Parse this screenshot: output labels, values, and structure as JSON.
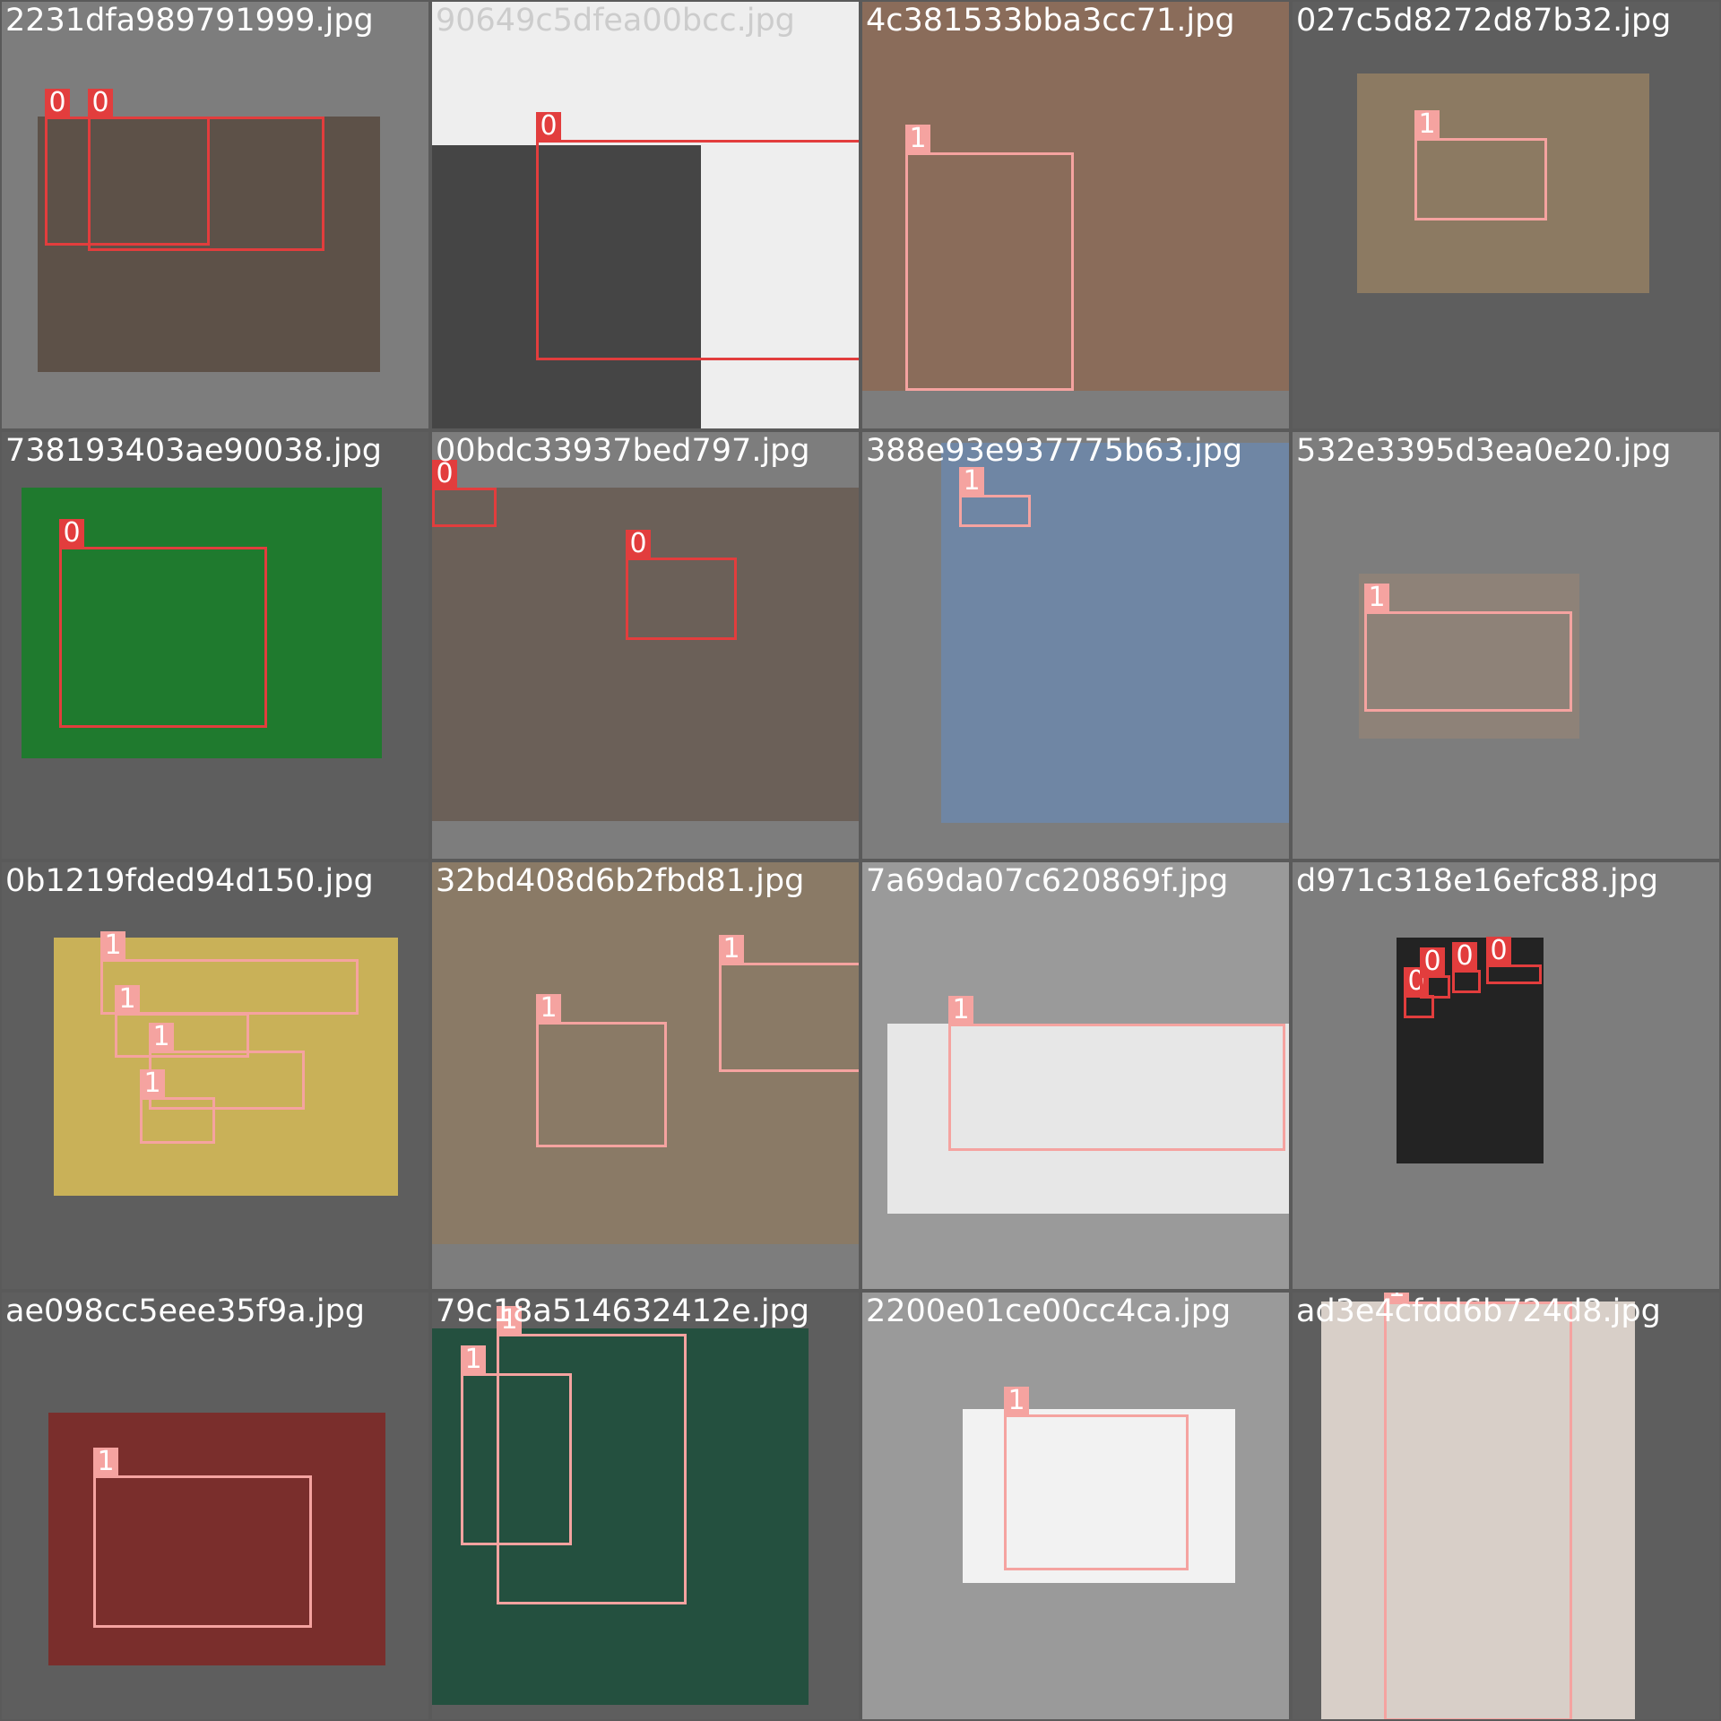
{
  "class_colors": {
    "0": "#e23d3d",
    "1": "#f5a3a0"
  },
  "tiles": [
    {
      "filename": "2231dfa989791999.jpg",
      "photo_color": "#5d5148",
      "boxes": [
        {
          "cls": "0"
        },
        {
          "cls": "0"
        }
      ]
    },
    {
      "filename": "90649c5dfea00bcc.jpg",
      "photo_color": "#454545",
      "boxes": [
        {
          "cls": "0"
        }
      ]
    },
    {
      "filename": "4c381533bba3cc71.jpg",
      "photo_color": "#8a6c5a",
      "boxes": [
        {
          "cls": "1"
        }
      ]
    },
    {
      "filename": "027c5d8272d87b32.jpg",
      "photo_color": "#8c7a62",
      "boxes": [
        {
          "cls": "1"
        }
      ]
    },
    {
      "filename": "738193403ae90038.jpg",
      "photo_color": "#1f7a2e",
      "boxes": [
        {
          "cls": "0"
        }
      ]
    },
    {
      "filename": "00bdc33937bed797.jpg",
      "photo_color": "#6b6058",
      "boxes": [
        {
          "cls": "0"
        },
        {
          "cls": "0"
        }
      ]
    },
    {
      "filename": "388e93e937775b63.jpg",
      "photo_color": "#6f86a4",
      "boxes": [
        {
          "cls": "1"
        }
      ]
    },
    {
      "filename": "532e3395d3ea0e20.jpg",
      "photo_color": "#8e8278",
      "boxes": [
        {
          "cls": "1"
        }
      ]
    },
    {
      "filename": "0b1219fded94d150.jpg",
      "photo_color": "#c9b158",
      "boxes": [
        {
          "cls": "1"
        },
        {
          "cls": "1"
        },
        {
          "cls": "1"
        },
        {
          "cls": "1"
        }
      ]
    },
    {
      "filename": "32bd408d6b2fbd81.jpg",
      "photo_color": "#8a7a66",
      "boxes": [
        {
          "cls": "1"
        },
        {
          "cls": "1"
        }
      ]
    },
    {
      "filename": "7a69da07c620869f.jpg",
      "photo_color": "#e7e7e7",
      "boxes": [
        {
          "cls": "1"
        }
      ]
    },
    {
      "filename": "d971c318e16efc88.jpg",
      "photo_color": "#232323",
      "boxes": [
        {
          "cls": "0"
        },
        {
          "cls": "0"
        },
        {
          "cls": "0"
        },
        {
          "cls": "0"
        }
      ]
    },
    {
      "filename": "ae098cc5eee35f9a.jpg",
      "photo_color": "#7a2e2c",
      "boxes": [
        {
          "cls": "1"
        }
      ]
    },
    {
      "filename": "79c18a514632412e.jpg",
      "photo_color": "#24503f",
      "boxes": [
        {
          "cls": "1"
        },
        {
          "cls": "1"
        }
      ]
    },
    {
      "filename": "2200e01ce00cc4ca.jpg",
      "photo_color": "#f2f2f2",
      "boxes": [
        {
          "cls": "1"
        }
      ]
    },
    {
      "filename": "ad3e4cfdd6b724d8.jpg",
      "photo_color": "#d8cfc8",
      "boxes": [
        {
          "cls": "1"
        }
      ]
    }
  ]
}
